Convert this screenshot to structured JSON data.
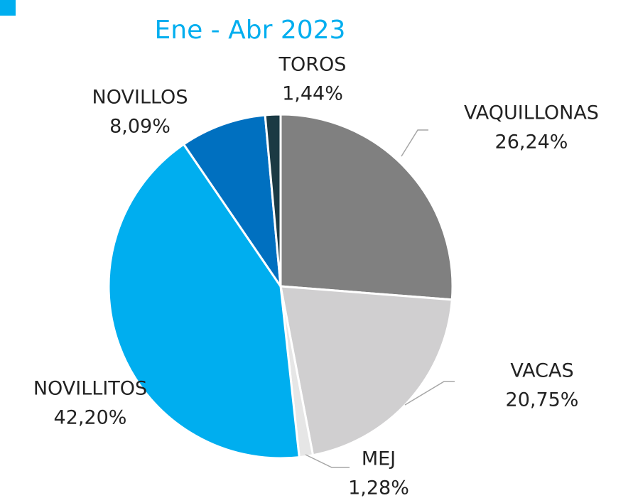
{
  "chart_data": {
    "type": "pie",
    "title": "Ene - Abr 2023",
    "categories": [
      "VAQUILLONAS",
      "VACAS",
      "MEJ",
      "NOVILLITOS",
      "NOVILLOS",
      "TOROS"
    ],
    "values": [
      26.24,
      20.75,
      1.28,
      42.2,
      8.09,
      1.44
    ],
    "value_labels": [
      "26,24%",
      "20,75%",
      "1,28%",
      "42,20%",
      "8,09%",
      "1,44%"
    ],
    "colors": [
      "#808080",
      "#d0cfd0",
      "#e6e6e6",
      "#00aeef",
      "#0070c0",
      "#1b3a44"
    ]
  }
}
